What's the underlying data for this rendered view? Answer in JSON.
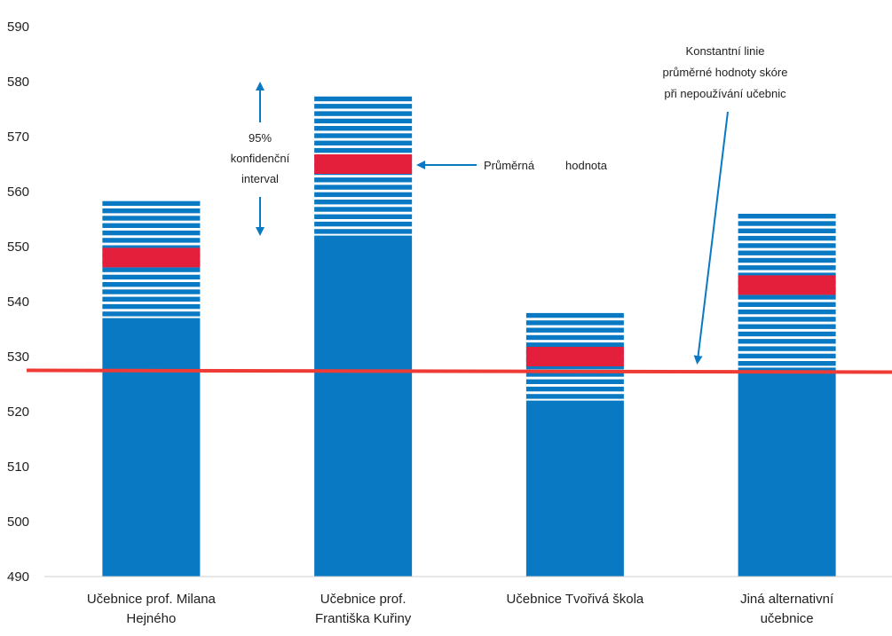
{
  "chart_data": {
    "type": "bar",
    "categories": [
      [
        "Učebnice prof. Milana",
        "Hejného"
      ],
      [
        "Učebnice prof.",
        "Františka Kuřiny"
      ],
      [
        "Učebnice Tvořivá škola"
      ],
      [
        "Jiná alternativní",
        "učebnice"
      ]
    ],
    "series": [
      {
        "values": [
          548,
          565,
          530,
          543
        ]
      }
    ],
    "ci_lower": [
      537,
      552,
      522,
      528
    ],
    "ci_upper": [
      559,
      578,
      539,
      557
    ],
    "reference_line": {
      "value": 527.5,
      "color": "#ef3b36"
    },
    "ylim": [
      490,
      590
    ],
    "yticks": [
      490,
      500,
      510,
      520,
      530,
      540,
      550,
      560,
      570,
      580,
      590
    ],
    "xlabel": "",
    "ylabel": "",
    "grid": false,
    "colors": {
      "bar": "#0a79c3",
      "mean_band": "#e41f3c",
      "reference_line": "#ef3b36",
      "arrow": "#0a79c3"
    },
    "annotations": {
      "ci_label": [
        "95%",
        "konfidenční",
        "interval"
      ],
      "mean_label": [
        "Průměrná",
        "hodnota"
      ],
      "reference_label": [
        "Konstantní linie",
        "průměrné hodnoty skóre",
        "při nepoužívání učebnic"
      ]
    }
  }
}
